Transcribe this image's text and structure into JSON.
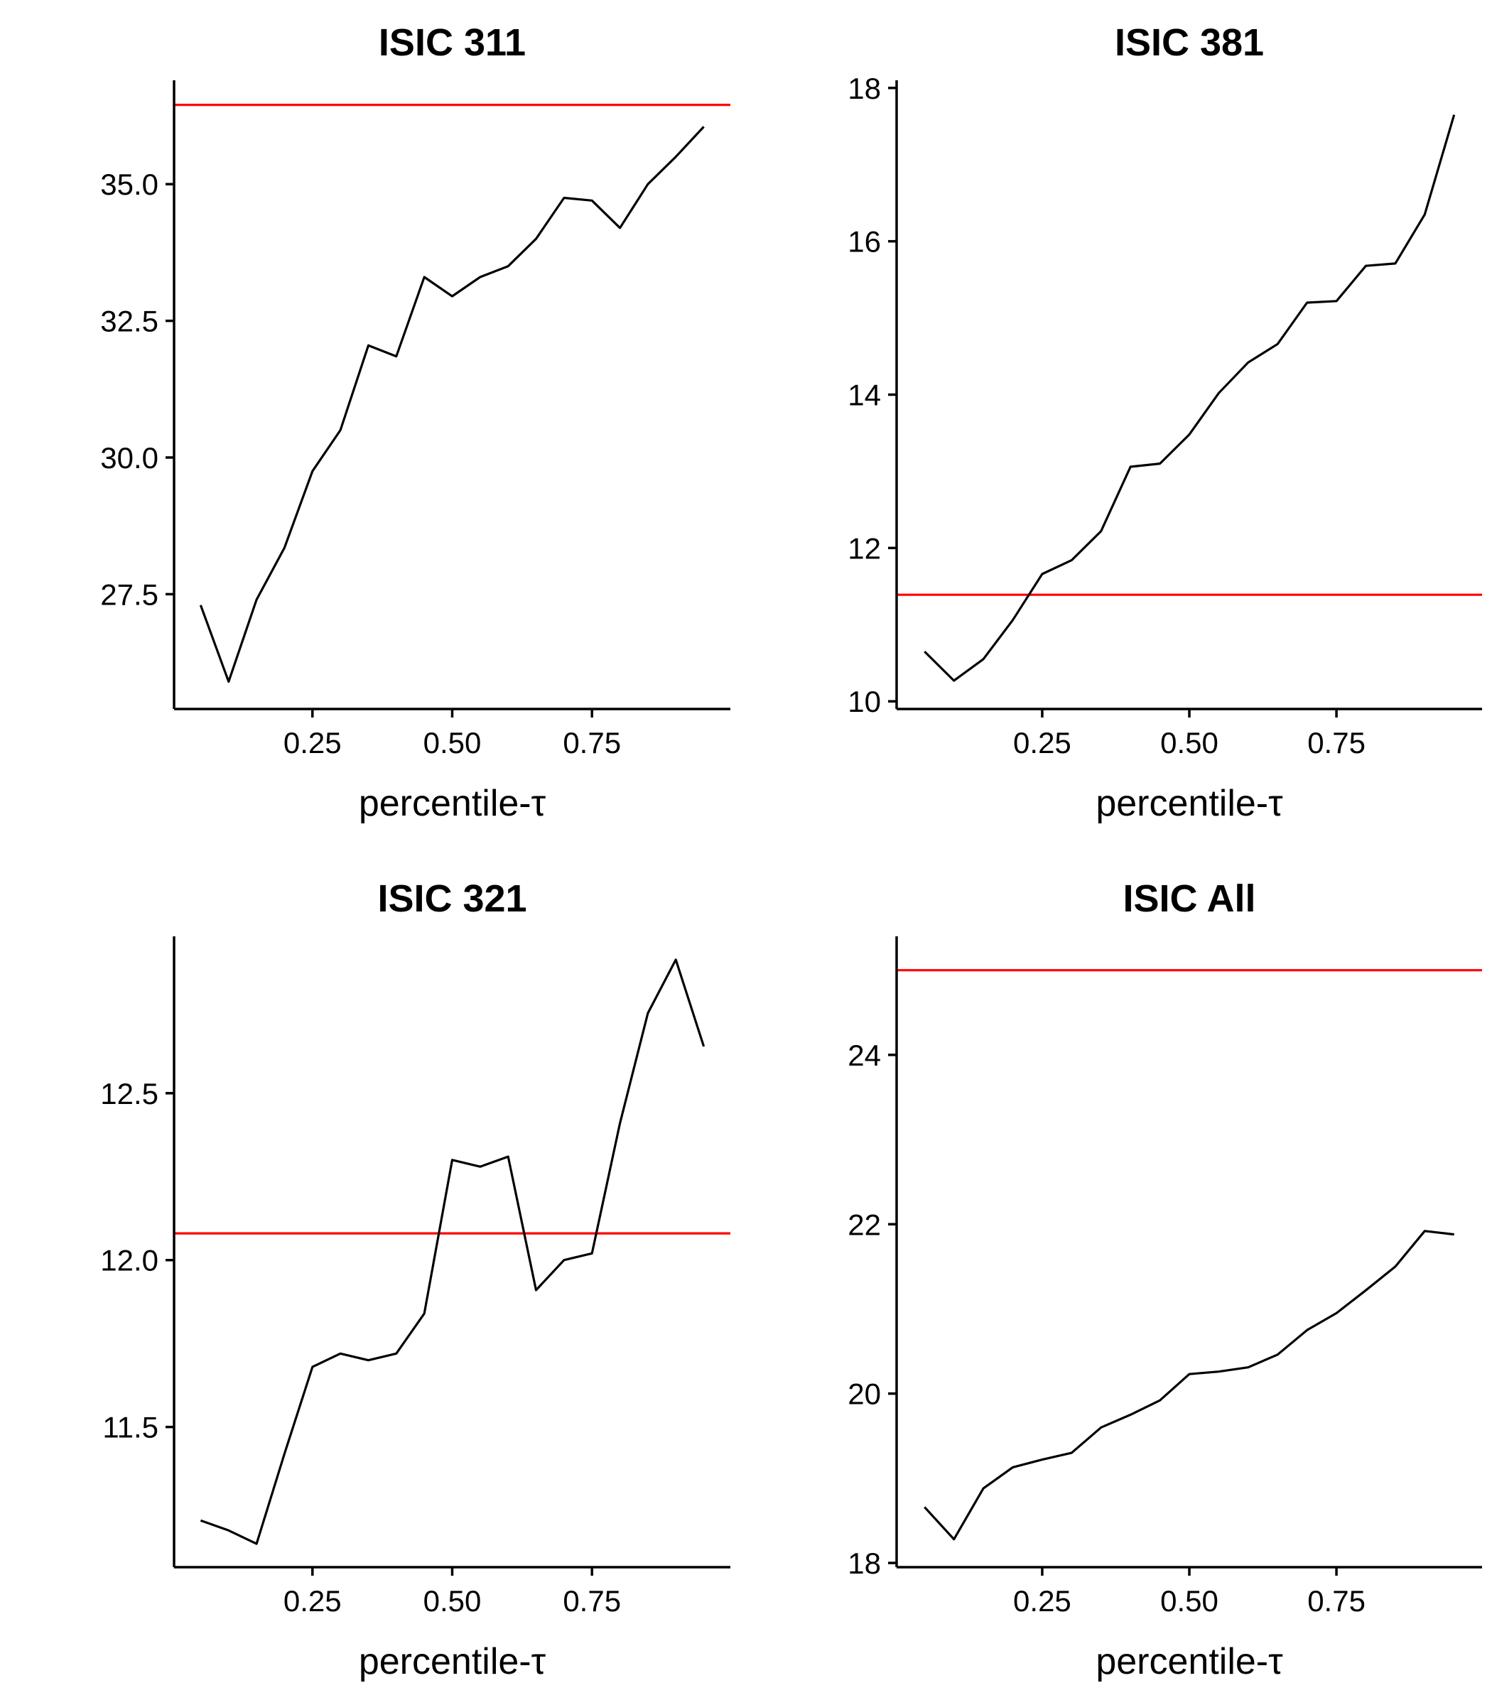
{
  "colors": {
    "series": "#000000",
    "reference": "#ff0000"
  },
  "chart_data": [
    {
      "type": "line",
      "title": "ISIC 311",
      "xlabel": "percentile-τ",
      "ylabel": "",
      "xlim": [
        0.05,
        0.95
      ],
      "ylim": [
        25.4,
        36.9
      ],
      "xticks": [
        0.25,
        0.5,
        0.75
      ],
      "xtick_labels": [
        "0.25",
        "0.50",
        "0.75"
      ],
      "yticks": [
        27.5,
        30.0,
        32.5,
        35.0
      ],
      "ytick_labels": [
        "27.5",
        "30.0",
        "32.5",
        "35.0"
      ],
      "x": [
        0.05,
        0.1,
        0.15,
        0.2,
        0.25,
        0.3,
        0.35,
        0.4,
        0.45,
        0.5,
        0.55,
        0.6,
        0.65,
        0.7,
        0.75,
        0.8,
        0.85,
        0.9,
        0.95
      ],
      "y": [
        27.3,
        25.9,
        27.4,
        28.35,
        29.75,
        30.5,
        32.05,
        31.85,
        33.3,
        32.95,
        33.3,
        33.5,
        34.0,
        34.75,
        34.7,
        34.2,
        35.0,
        35.5,
        36.05
      ],
      "reference_line": 36.45,
      "grid": false
    },
    {
      "type": "line",
      "title": "ISIC 381",
      "xlabel": "percentile-τ",
      "ylabel": "",
      "xlim": [
        0.05,
        0.95
      ],
      "ylim": [
        9.9,
        18.1
      ],
      "xticks": [
        0.25,
        0.5,
        0.75
      ],
      "xtick_labels": [
        "0.25",
        "0.50",
        "0.75"
      ],
      "yticks": [
        10,
        12,
        14,
        16,
        18
      ],
      "ytick_labels": [
        "10",
        "12",
        "14",
        "16",
        "18"
      ],
      "x": [
        0.05,
        0.1,
        0.15,
        0.2,
        0.25,
        0.3,
        0.35,
        0.4,
        0.45,
        0.5,
        0.55,
        0.6,
        0.65,
        0.7,
        0.75,
        0.8,
        0.85,
        0.9,
        0.95
      ],
      "y": [
        10.65,
        10.27,
        10.55,
        11.06,
        11.66,
        11.84,
        12.22,
        13.06,
        13.1,
        13.48,
        14.02,
        14.42,
        14.66,
        15.2,
        15.22,
        15.68,
        15.71,
        16.35,
        17.65
      ],
      "reference_line": 11.39,
      "grid": false
    },
    {
      "type": "line",
      "title": "ISIC 321",
      "xlabel": "percentile-τ",
      "ylabel": "",
      "xlim": [
        0.05,
        0.95
      ],
      "ylim": [
        11.08,
        12.97
      ],
      "xticks": [
        0.25,
        0.5,
        0.75
      ],
      "xtick_labels": [
        "0.25",
        "0.50",
        "0.75"
      ],
      "yticks": [
        11.5,
        12.0,
        12.5
      ],
      "ytick_labels": [
        "11.5",
        "12.0",
        "12.5"
      ],
      "x": [
        0.05,
        0.1,
        0.15,
        0.2,
        0.25,
        0.3,
        0.35,
        0.4,
        0.45,
        0.5,
        0.55,
        0.6,
        0.65,
        0.7,
        0.75,
        0.8,
        0.85,
        0.9,
        0.95
      ],
      "y": [
        11.22,
        11.19,
        11.15,
        11.42,
        11.68,
        11.72,
        11.7,
        11.72,
        11.84,
        12.3,
        12.28,
        12.31,
        11.91,
        12.0,
        12.02,
        12.41,
        12.74,
        12.9,
        12.64
      ],
      "reference_line": 12.08,
      "grid": false
    },
    {
      "type": "line",
      "title": "ISIC All",
      "xlabel": "percentile-τ",
      "ylabel": "",
      "xlim": [
        0.05,
        0.95
      ],
      "ylim": [
        17.95,
        25.4
      ],
      "xticks": [
        0.25,
        0.5,
        0.75
      ],
      "xtick_labels": [
        "0.25",
        "0.50",
        "0.75"
      ],
      "yticks": [
        18,
        20,
        22,
        24
      ],
      "ytick_labels": [
        "18",
        "20",
        "22",
        "24"
      ],
      "x": [
        0.05,
        0.1,
        0.15,
        0.2,
        0.25,
        0.3,
        0.35,
        0.4,
        0.45,
        0.5,
        0.55,
        0.6,
        0.65,
        0.7,
        0.75,
        0.8,
        0.85,
        0.9,
        0.95
      ],
      "y": [
        18.66,
        18.28,
        18.88,
        19.13,
        19.22,
        19.3,
        19.6,
        19.75,
        19.92,
        20.23,
        20.26,
        20.31,
        20.46,
        20.75,
        20.95,
        21.22,
        21.5,
        21.92,
        21.88
      ],
      "reference_line": 25.0,
      "grid": false
    }
  ]
}
